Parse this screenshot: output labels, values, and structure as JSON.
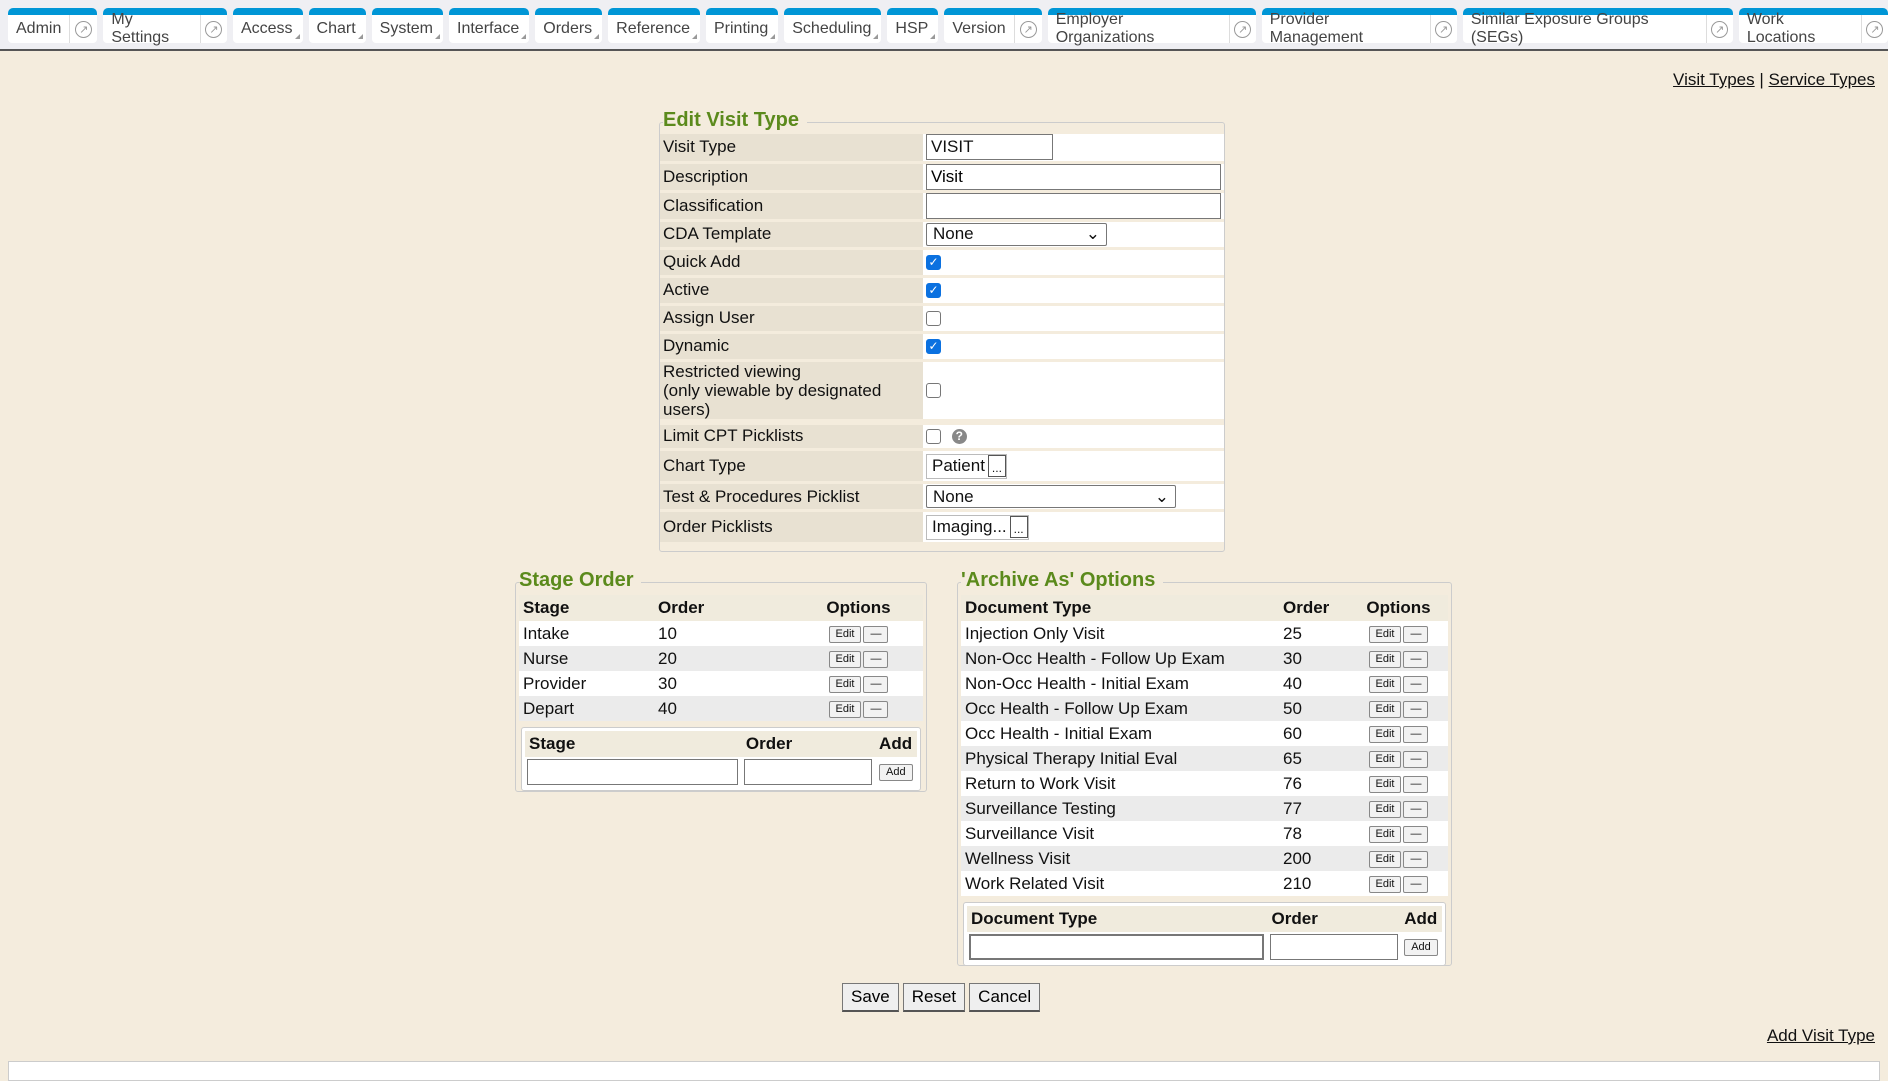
{
  "tabs": [
    {
      "label": "Admin",
      "popout": true
    },
    {
      "label": "My Settings",
      "popout": true
    },
    {
      "label": "Access",
      "dropdown": true
    },
    {
      "label": "Chart",
      "dropdown": true
    },
    {
      "label": "System",
      "dropdown": true
    },
    {
      "label": "Interface",
      "dropdown": true
    },
    {
      "label": "Orders",
      "dropdown": true
    },
    {
      "label": "Reference",
      "dropdown": true
    },
    {
      "label": "Printing",
      "dropdown": true
    },
    {
      "label": "Scheduling",
      "dropdown": true
    },
    {
      "label": "HSP",
      "dropdown": true
    },
    {
      "label": "Version",
      "popout": true
    },
    {
      "label": "Employer Organizations",
      "popout": true
    },
    {
      "label": "Provider Management",
      "popout": true
    },
    {
      "label": "Similar Exposure Groups (SEGs)",
      "popout": true
    },
    {
      "label": "Work Locations",
      "popout": true
    }
  ],
  "links": {
    "visit_types": "Visit Types",
    "sep": "|",
    "service_types": "Service Types",
    "add_visit_type": "Add Visit Type"
  },
  "edit": {
    "title": "Edit Visit Type",
    "visit_type_label": "Visit Type",
    "visit_type": "VISIT",
    "description_label": "Description",
    "description": "Visit",
    "classification_label": "Classification",
    "classification": "",
    "cda_label": "CDA Template",
    "cda": "None",
    "quick_add_label": "Quick Add",
    "quick_add": true,
    "active_label": "Active",
    "active": true,
    "assign_user_label": "Assign User",
    "assign_user": false,
    "dynamic_label": "Dynamic",
    "dynamic": true,
    "restricted_label": "Restricted viewing",
    "restricted_sub": "(only viewable by designated users)",
    "restricted": false,
    "limit_cpt_label": "Limit CPT Picklists",
    "limit_cpt": false,
    "chart_type_label": "Chart Type",
    "chart_type": "Patient",
    "tp_label": "Test & Procedures Picklist",
    "tp": "None",
    "order_pick_label": "Order Picklists",
    "order_pick": "Imaging...",
    "ellipsis": "..."
  },
  "stage": {
    "title": "Stage Order",
    "headers": [
      "Stage",
      "Order",
      "Options"
    ],
    "rows": [
      {
        "stage": "Intake",
        "order": "10"
      },
      {
        "stage": "Nurse",
        "order": "20"
      },
      {
        "stage": "Provider",
        "order": "30"
      },
      {
        "stage": "Depart",
        "order": "40"
      }
    ],
    "add_headers": [
      "Stage",
      "Order",
      "Add"
    ],
    "add_button": "Add"
  },
  "archive": {
    "title": "'Archive As' Options",
    "headers": [
      "Document Type",
      "Order",
      "Options"
    ],
    "rows": [
      {
        "doc": "Injection Only Visit",
        "order": "25"
      },
      {
        "doc": "Non-Occ Health - Follow Up Exam",
        "order": "30"
      },
      {
        "doc": "Non-Occ Health - Initial Exam",
        "order": "40"
      },
      {
        "doc": "Occ Health - Follow Up Exam",
        "order": "50"
      },
      {
        "doc": "Occ Health - Initial Exam",
        "order": "60"
      },
      {
        "doc": "Physical Therapy Initial Eval",
        "order": "65"
      },
      {
        "doc": "Return to Work Visit",
        "order": "76"
      },
      {
        "doc": "Surveillance Testing",
        "order": "77"
      },
      {
        "doc": "Surveillance Visit",
        "order": "78"
      },
      {
        "doc": "Wellness Visit",
        "order": "200"
      },
      {
        "doc": "Work Related Visit",
        "order": "210"
      }
    ],
    "add_headers": [
      "Document Type",
      "Order",
      "Add"
    ],
    "add_button": "Add"
  },
  "row_buttons": {
    "edit": "Edit",
    "remove": "—"
  },
  "actions": {
    "save": "Save",
    "reset": "Reset",
    "cancel": "Cancel"
  },
  "colors": {
    "tab_accent": "#0096d6",
    "legend": "#5b8a1c",
    "background": "#f4ecdd"
  }
}
